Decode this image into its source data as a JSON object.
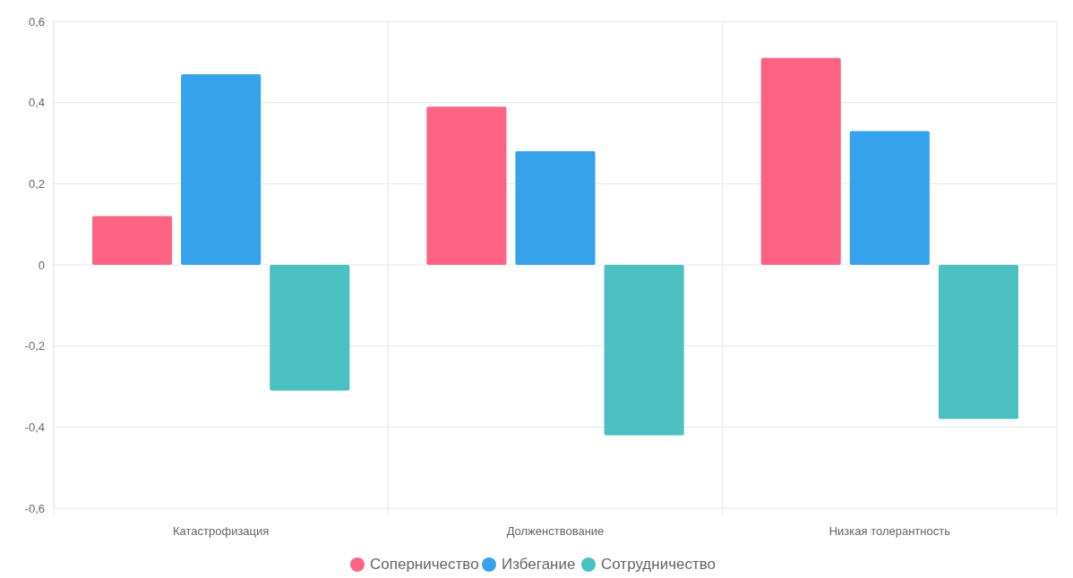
{
  "chart_data": {
    "type": "bar",
    "categories": [
      "Катастрофизация",
      "Долженствование",
      "Низкая толерантность"
    ],
    "series": [
      {
        "name": "Соперничество",
        "color": "#ff6384",
        "values": [
          0.12,
          0.39,
          0.51
        ]
      },
      {
        "name": "Избегание",
        "color": "#36a2eb",
        "values": [
          0.47,
          0.28,
          0.33
        ]
      },
      {
        "name": "Сотрудничество",
        "color": "#4bc0c0",
        "values": [
          -0.31,
          -0.42,
          -0.38
        ]
      }
    ],
    "ylim": [
      -0.6,
      0.6
    ],
    "yticks": [
      {
        "value": -0.6,
        "label": "-0,6"
      },
      {
        "value": -0.4,
        "label": "-0,4"
      },
      {
        "value": -0.2,
        "label": "-0,2"
      },
      0,
      {
        "value": 0.2,
        "label": "0,2"
      },
      {
        "value": 0.4,
        "label": "0,4"
      },
      {
        "value": 0.6,
        "label": "0,6"
      }
    ],
    "grid": true,
    "legend": "bottom",
    "marker": "circle"
  }
}
